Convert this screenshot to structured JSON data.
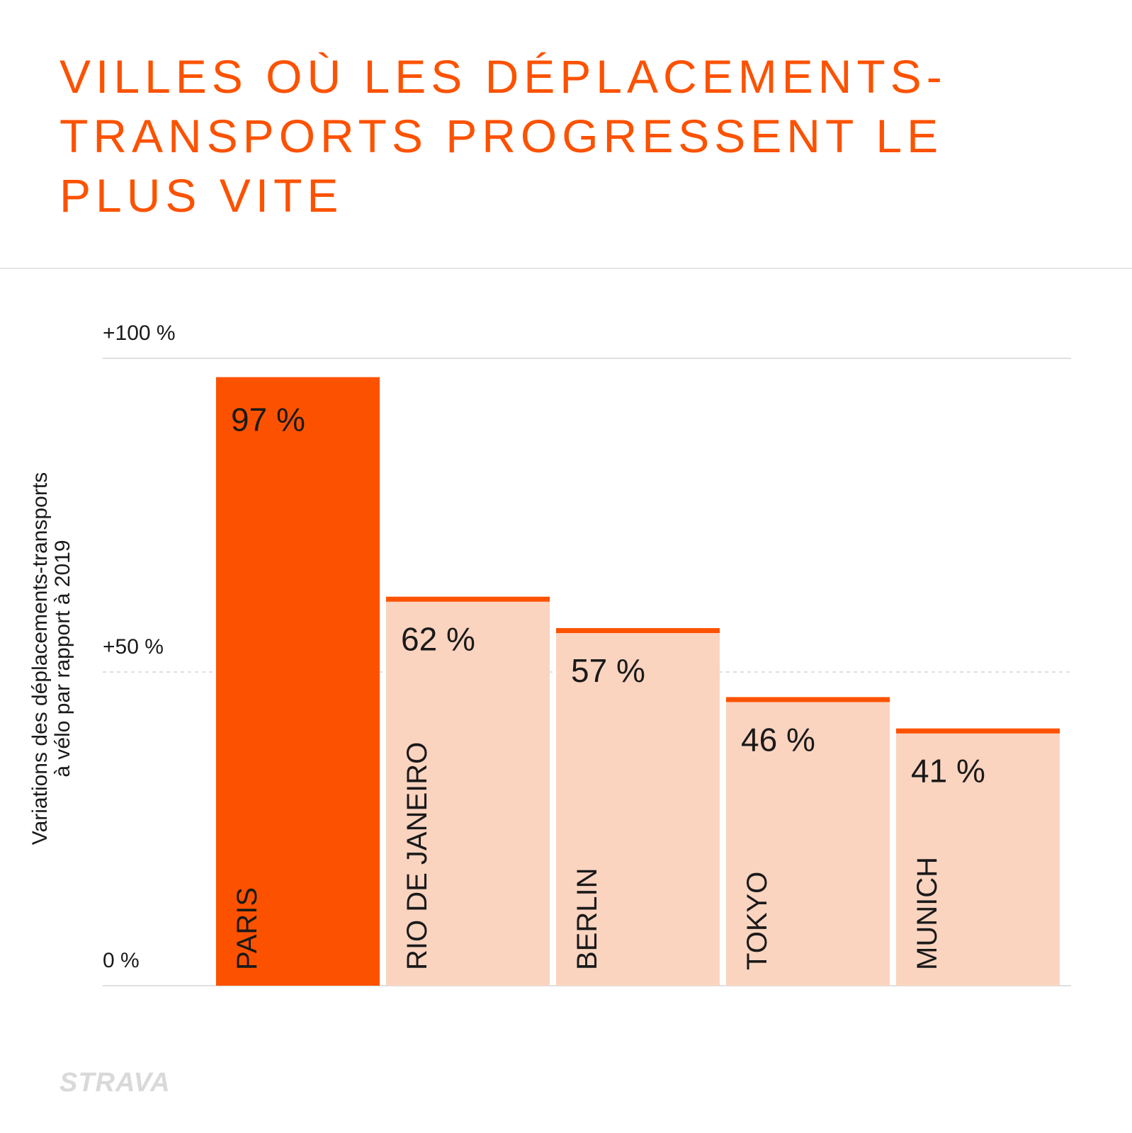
{
  "title_lines": [
    "VILLES OÙ LES DÉPLACEMENTS-",
    "TRANSPORTS PROGRESSENT LE",
    "PLUS VITE"
  ],
  "logo": "STRAVA",
  "colors": {
    "accent": "#fc5200",
    "bar_light": "#fbd4c0",
    "text": "#1a1a1a",
    "grid": "#e0e0e0"
  },
  "chart_data": {
    "type": "bar",
    "title": "VILLES OÙ LES DÉPLACEMENTS-TRANSPORTS PROGRESSENT LE PLUS VITE",
    "ylabel_lines": [
      "Variations des déplacements-transports",
      "à vélo par rapport à 2019"
    ],
    "xlabel": "",
    "ylim": [
      0,
      100
    ],
    "y_ticks": [
      {
        "value": 0,
        "label": "0 %"
      },
      {
        "value": 50,
        "label": "+50 %"
      },
      {
        "value": 100,
        "label": "+100 %"
      }
    ],
    "categories": [
      "PARIS",
      "RIO DE JANEIRO",
      "BERLIN",
      "TOKYO",
      "MUNICH"
    ],
    "values": [
      97,
      62,
      57,
      46,
      41
    ],
    "value_labels": [
      "97 %",
      "62 %",
      "57 %",
      "46 %",
      "41 %"
    ],
    "highlight": "PARIS",
    "grid": true
  }
}
